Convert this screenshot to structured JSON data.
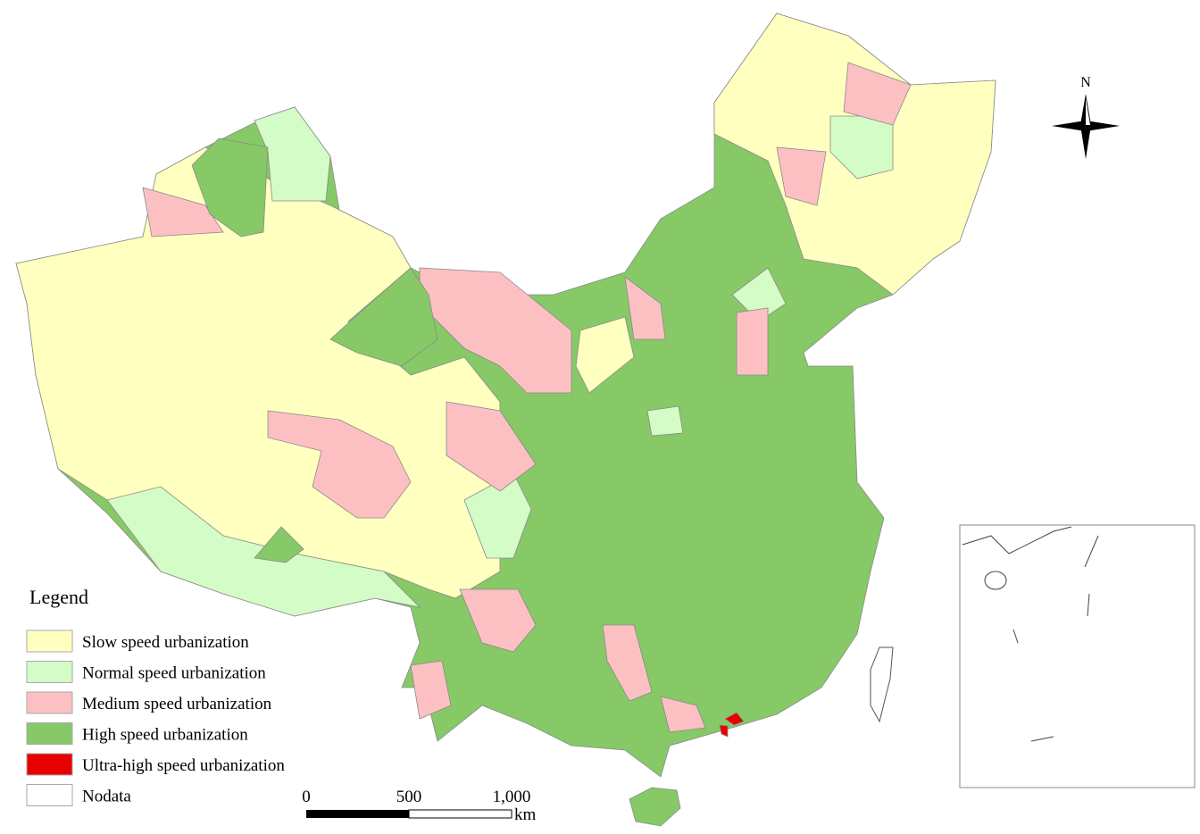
{
  "legend": {
    "title": "Legend",
    "items": [
      {
        "label": "Slow speed urbanization",
        "color": "#ffffc0"
      },
      {
        "label": "Normal speed urbanization",
        "color": "#d3fcc6"
      },
      {
        "label": "Medium speed urbanization",
        "color": "#fcc0c3"
      },
      {
        "label": "High speed urbanization",
        "color": "#86c966"
      },
      {
        "label": "Ultra-high speed urbanization",
        "color": "#e60000"
      },
      {
        "label": "Nodata",
        "color": "#ffffff"
      }
    ]
  },
  "scale_bar": {
    "labels": [
      "0",
      "500",
      "1,000"
    ],
    "unit": "km"
  },
  "north_arrow": {
    "label": "N"
  }
}
